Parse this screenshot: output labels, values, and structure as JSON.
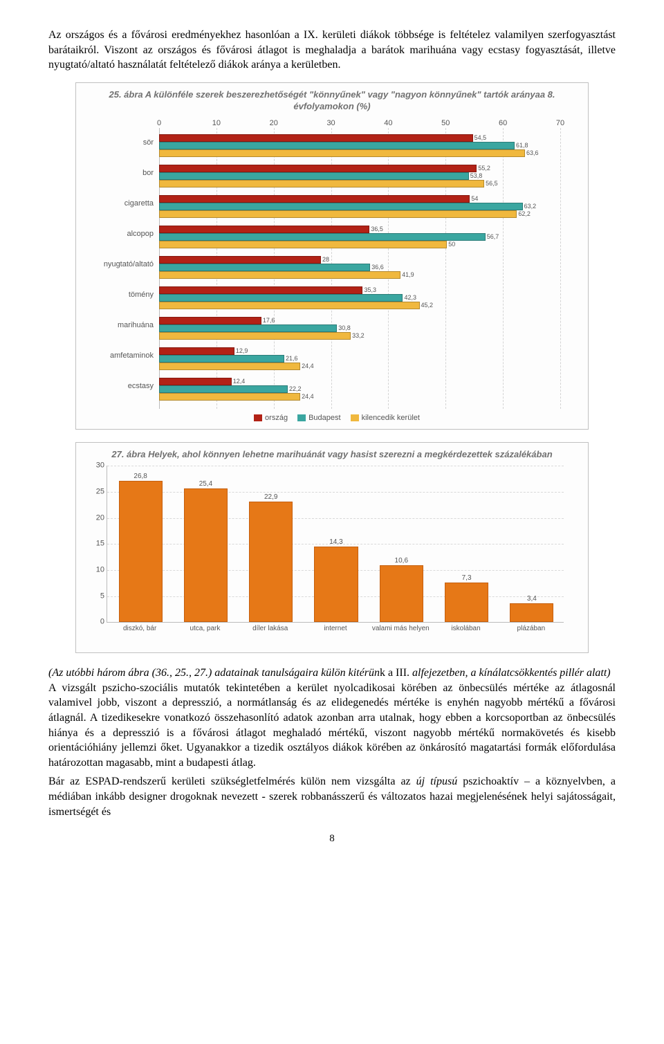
{
  "para1": "Az országos és a fővárosi eredményekhez hasonlóan a IX. kerületi diákok többsége is feltételez valamilyen szerfogyasztást barátaikról. Viszont az országos és fővárosi átlagot is meghaladja a barátok marihuána vagy ecstasy fogyasztását, illetve nyugtató/altató használatát feltételező diákok aránya a kerületben.",
  "chart1": {
    "title": "25. ábra A különféle szerek beszerezhetőségét \"könnyűnek\" vagy \"nagyon könnyűnek\" tartók arányaa 8. évfolyamokon (%)",
    "x_max": 70,
    "x_ticks": [
      0,
      10,
      20,
      30,
      40,
      50,
      60,
      70
    ],
    "categories": [
      "sör",
      "bor",
      "cigaretta",
      "alcopop",
      "nyugtató/altató",
      "tömény",
      "marihuána",
      "amfetaminok",
      "ecstasy"
    ],
    "series": [
      {
        "name": "ország",
        "color": "#b22216",
        "values": [
          54.5,
          55.2,
          54.0,
          36.5,
          28.0,
          35.3,
          17.6,
          12.9,
          12.4
        ]
      },
      {
        "name": "Budapest",
        "color": "#3aa6a0",
        "values": [
          61.8,
          53.8,
          63.2,
          56.7,
          36.6,
          42.3,
          30.8,
          21.6,
          22.2
        ]
      },
      {
        "name": "kilencedik kerület",
        "color": "#f0b83e",
        "values": [
          63.6,
          56.5,
          62.2,
          50.0,
          41.9,
          45.2,
          33.2,
          24.4,
          24.4
        ]
      }
    ]
  },
  "chart2": {
    "title": "27. ábra Helyek, ahol könnyen lehetne marihuánát vagy hasist szerezni a megkérdezettek százalékában",
    "y_max": 30,
    "y_ticks": [
      0,
      5,
      10,
      15,
      20,
      25,
      30
    ],
    "bar_color": "#e67817",
    "categories": [
      "diszkó, bár",
      "utca, park",
      "díler lakása",
      "internet",
      "valami más helyen",
      "iskolában",
      "plázában"
    ],
    "values": [
      26.8,
      25.4,
      22.9,
      14.3,
      10.6,
      7.3,
      3.4
    ]
  },
  "note_italic_open": "(Az utóbbi három ábra (36., 25., 27.) adatainak tanulságaira külön kitérün",
  "note_roman": "k a III. ",
  "note_italic_close": "alfejezetben, a kínálatcsökkentés pillér alatt)",
  "para2": "A vizsgált pszicho-szociális mutatók tekintetében a kerület nyolcadikosai körében az önbecsülés mértéke az átlagosnál valamivel jobb, viszont a depresszió, a normátlanság és az elidegenedés mértéke is enyhén nagyobb mértékű a fővárosi átlagnál. A tizedikesekre vonatkozó összehasonlító adatok azonban arra utalnak, hogy ebben a korcsoportban az önbecsülés hiánya és a depresszió is a fővárosi átlagot meghaladó mértékű, viszont nagyobb mértékű normakövetés és kisebb orientációhiány jellemzi őket. Ugyanakkor a tizedik osztályos diákok körében az önkárosító magatartási formák előfordulása határozottan magasabb, mint a budapesti átlag.",
  "para3a": "Bár az ESPAD-rendszerű kerületi szükségletfelmérés külön nem vizsgálta az ",
  "para3_em": "új típusú",
  "para3b": " pszichoaktív – a köznyelvben, a médiában inkább designer drogoknak nevezett - szerek robbanásszerű és változatos hazai megjelenésének helyi sajátosságait, ismertségét és",
  "pagenum": "8"
}
